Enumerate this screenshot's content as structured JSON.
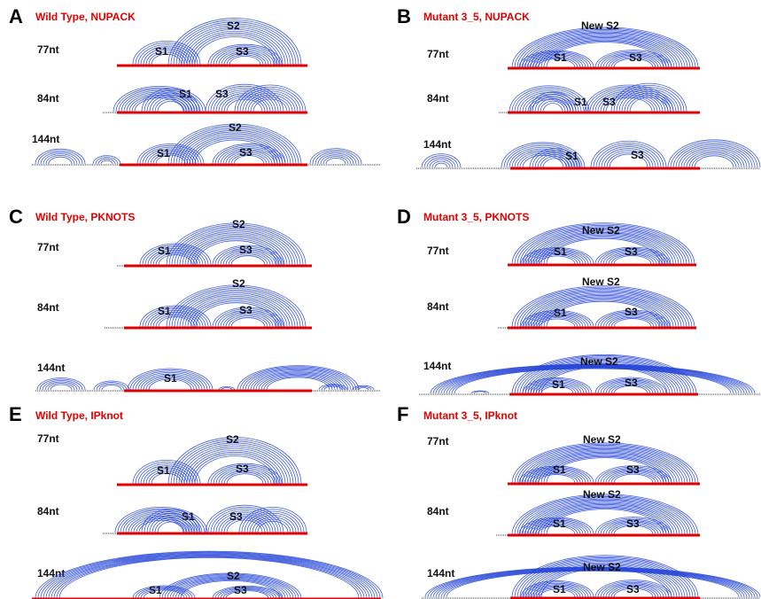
{
  "colors": {
    "arc": "#1f3fd6",
    "backbone": "#e00000",
    "tick": "#999999",
    "title": "#e00000"
  },
  "panels": [
    {
      "letter": "A",
      "title": "Wild Type, NUPACK"
    },
    {
      "letter": "B",
      "title": "Mutant 3_5, NUPACK"
    },
    {
      "letter": "C",
      "title": "Wild Type, PKNOTS"
    },
    {
      "letter": "D",
      "title": "Mutant 3_5, PKNOTS"
    },
    {
      "letter": "E",
      "title": "Wild Type, IPknot"
    },
    {
      "letter": "F",
      "title": "Mutant 3_5, IPknot"
    }
  ],
  "lengths": {
    "l77": "77nt",
    "l84": "84nt",
    "l144": "144nt"
  },
  "stems": {
    "s1": "S1",
    "s2": "S2",
    "s3": "S3",
    "new_s2": "New S2"
  }
}
